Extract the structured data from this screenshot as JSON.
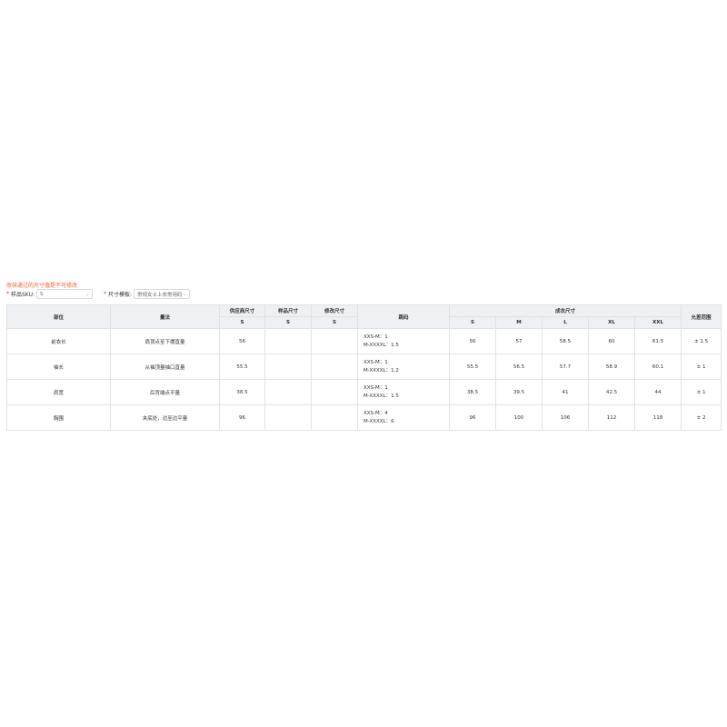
{
  "notice": "审核通过的尺寸值是不可修改",
  "filters": {
    "sku_label": "样品SKU:",
    "sku_value": "S",
    "template_label": "尺寸模板:",
    "template_value": "常规女士上衣常用码"
  },
  "table": {
    "headers": {
      "part": "部位",
      "method": "量法",
      "supplier": "供应商尺寸",
      "sample": "样品尺寸",
      "modified": "修改尺寸",
      "jump": "跳码",
      "garment": "成衣尺寸",
      "tolerance": "允差范围"
    },
    "sub": {
      "supplier": "S",
      "sample": "S",
      "modified": "S"
    },
    "sizes": [
      "S",
      "M",
      "L",
      "XL",
      "XXL"
    ],
    "rows": [
      {
        "part": "前衣长",
        "method": "肩顶点至下摆直量",
        "supplier": "56",
        "sample": "",
        "modified": "",
        "jump1": "XXS-M：1",
        "jump2": "M-XXXXL：1.5",
        "values": [
          "56",
          "57",
          "58.5",
          "60",
          "61.5"
        ],
        "tolerance": "± 1.5"
      },
      {
        "part": "袖长",
        "method": "从袖顶量袖口直量",
        "supplier": "55.5",
        "sample": "",
        "modified": "",
        "jump1": "XXS-M：1",
        "jump2": "M-XXXXL：1.2",
        "values": [
          "55.5",
          "56.5",
          "57.7",
          "58.9",
          "60.1"
        ],
        "tolerance": "± 1"
      },
      {
        "part": "肩宽",
        "method": "后背端点平量",
        "supplier": "38.5",
        "sample": "",
        "modified": "",
        "jump1": "XXS-M：1",
        "jump2": "M-XXXXL：1.5",
        "values": [
          "38.5",
          "39.5",
          "41",
          "42.5",
          "44"
        ],
        "tolerance": "± 1"
      },
      {
        "part": "胸围",
        "method": "夹底处，边至边平量",
        "supplier": "96",
        "sample": "",
        "modified": "",
        "jump1": "XXS-M：4",
        "jump2": "M-XXXXL：6",
        "values": [
          "96",
          "100",
          "106",
          "112",
          "118"
        ],
        "tolerance": "± 2"
      }
    ]
  }
}
